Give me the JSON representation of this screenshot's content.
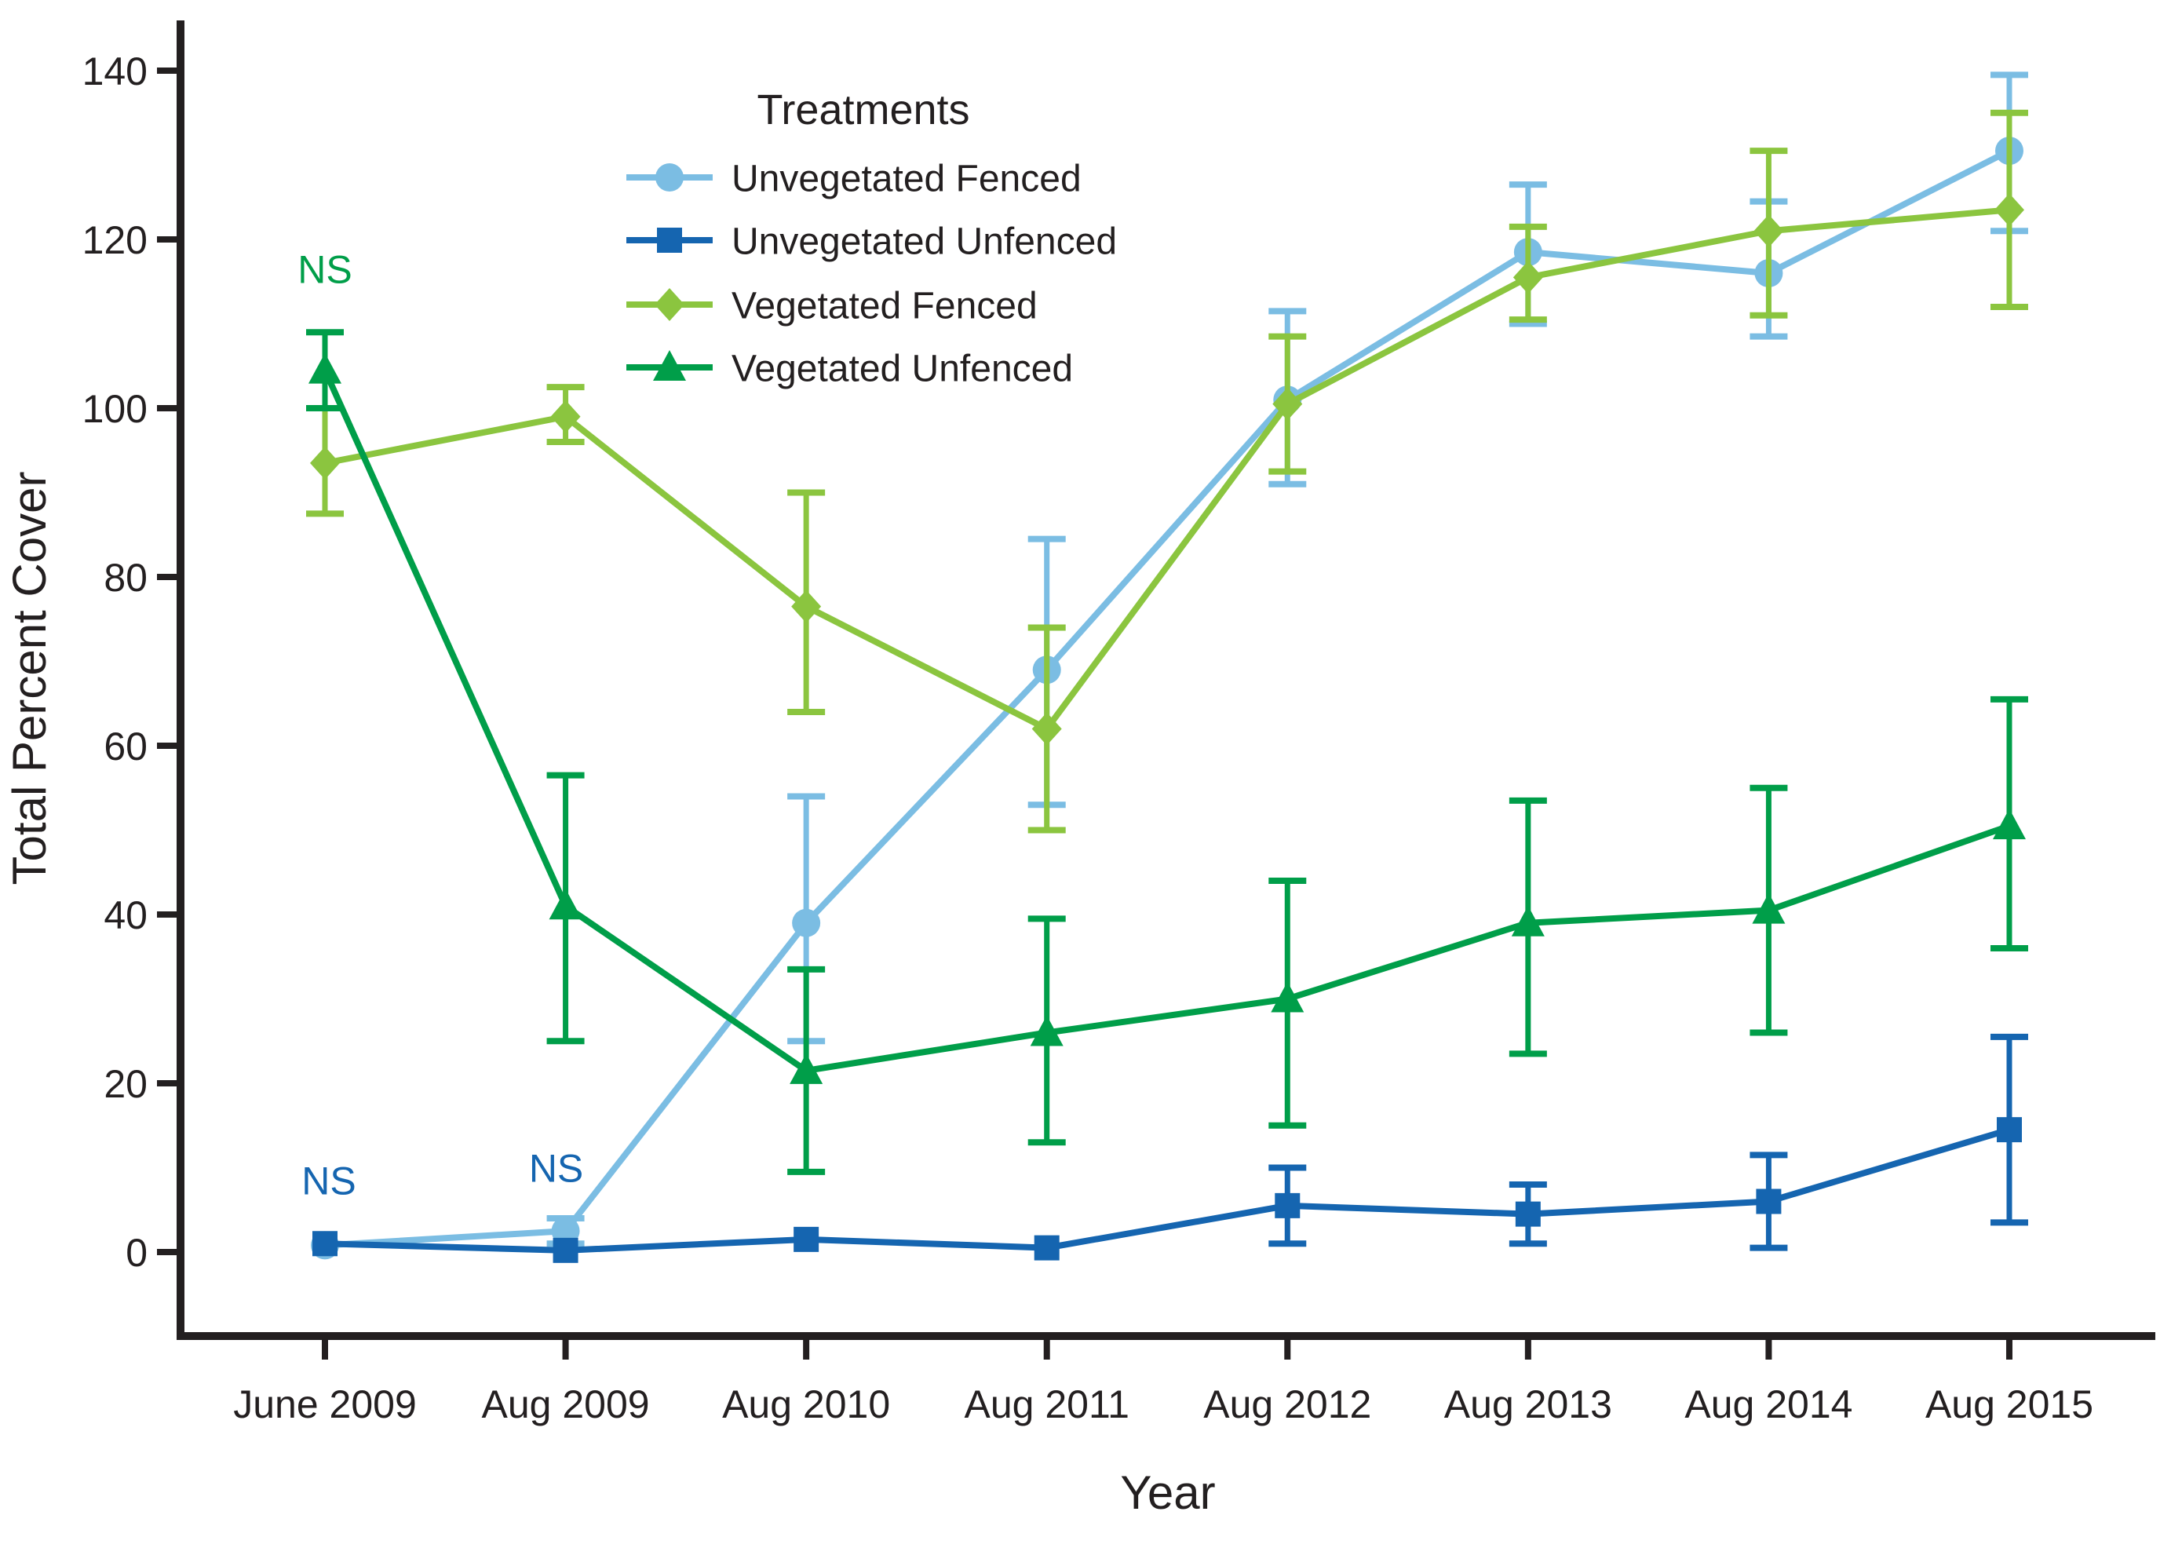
{
  "chart_data": {
    "type": "line",
    "title": "",
    "xlabel": "Year",
    "ylabel": "Total Percent Cover",
    "legend_title": "Treatments",
    "legend_position": "top-left-inside",
    "grid": false,
    "ink_color": "#231f20",
    "categories": [
      "June 2009",
      "Aug 2009",
      "Aug 2010",
      "Aug 2011",
      "Aug 2012",
      "Aug 2013",
      "Aug 2014",
      "Aug 2015"
    ],
    "yticks": [
      0,
      20,
      40,
      60,
      80,
      100,
      120,
      140
    ],
    "ylim": [
      -10,
      146
    ],
    "series": [
      {
        "name": "Unvegetated Fenced",
        "marker": "circle",
        "color": "#7bbde3",
        "values": [
          0.8,
          2.5,
          39,
          69,
          101,
          118.5,
          116,
          130.5
        ],
        "err_low": [
          0.8,
          1,
          25,
          53,
          91,
          110,
          108.5,
          121
        ],
        "err_high": [
          0.8,
          4,
          54,
          84.5,
          111.5,
          126.5,
          124.5,
          139.5
        ]
      },
      {
        "name": "Unvegetated Unfenced",
        "marker": "square",
        "color": "#1565b0",
        "values": [
          1,
          0.2,
          1.5,
          0.5,
          5.5,
          4.5,
          6,
          14.5
        ],
        "err_low": [
          1,
          0.2,
          1.5,
          0.5,
          1,
          1,
          0.5,
          3.5
        ],
        "err_high": [
          1,
          0.2,
          1.5,
          0.5,
          10,
          8,
          11.5,
          25.5
        ]
      },
      {
        "name": "Vegetated Fenced",
        "marker": "diamond",
        "color": "#8bc53f",
        "values": [
          93.5,
          99,
          76.5,
          62,
          100.5,
          115.5,
          121,
          123.5
        ],
        "err_low": [
          87.5,
          96,
          64,
          50,
          92.5,
          110.5,
          111,
          112
        ],
        "err_high": [
          100,
          102.5,
          90,
          74,
          108.5,
          121.5,
          130.5,
          135
        ]
      },
      {
        "name": "Vegetated Unfenced",
        "marker": "triangle",
        "color": "#009e49",
        "values": [
          104.5,
          41,
          21.5,
          26,
          30,
          39,
          40.5,
          50.5
        ],
        "err_low": [
          100,
          25,
          9.5,
          13,
          15,
          23.5,
          26,
          36
        ],
        "err_high": [
          109,
          56.5,
          33.5,
          39.5,
          44,
          53.5,
          55,
          65.5
        ]
      }
    ],
    "annotations": [
      {
        "text": "NS",
        "color": "#009e49",
        "category_index": 0,
        "value": 116.5,
        "dx": 0
      },
      {
        "text": "NS",
        "color": "#1565b0",
        "category_index": 0,
        "value": 8.5,
        "dx": 5
      },
      {
        "text": "NS",
        "color": "#1565b0",
        "category_index": 1,
        "value": 10,
        "dx": -12
      }
    ]
  }
}
